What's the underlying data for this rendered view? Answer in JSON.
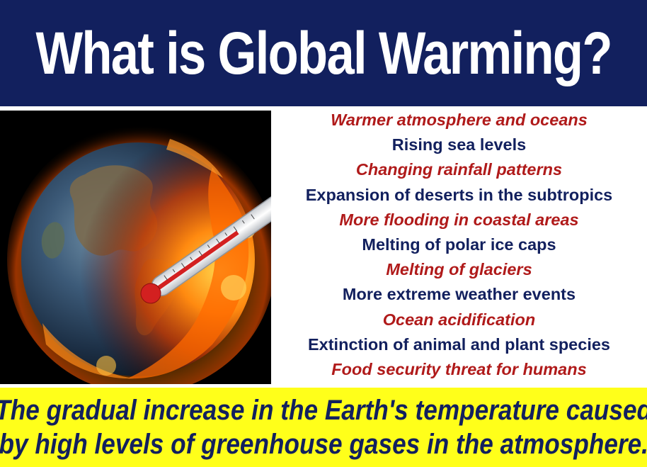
{
  "title": "What is Global Warming?",
  "illustration": {
    "description_icon": "burning-earth-thermometer-icon",
    "colors": {
      "fire": "#ff6a00",
      "ocean": "#1c3a5a",
      "thermometer_bulb": "#d32020"
    }
  },
  "effects": [
    {
      "text": "Warmer atmosphere and oceans",
      "color": "#b01a1a"
    },
    {
      "text": "Rising sea levels",
      "color": "#12205e"
    },
    {
      "text": "Changing rainfall patterns",
      "color": "#b01a1a"
    },
    {
      "text": "Expansion of deserts in the subtropics",
      "color": "#12205e"
    },
    {
      "text": "More flooding in coastal areas",
      "color": "#b01a1a"
    },
    {
      "text": "Melting of polar ice caps",
      "color": "#12205e"
    },
    {
      "text": "Melting of glaciers",
      "color": "#b01a1a"
    },
    {
      "text": "More extreme weather events",
      "color": "#12205e"
    },
    {
      "text": "Ocean acidification",
      "color": "#b01a1a"
    },
    {
      "text": "Extinction of animal and plant species",
      "color": "#12205e"
    },
    {
      "text": "Food security threat for humans",
      "color": "#b01a1a"
    }
  ],
  "definition": {
    "line1": "The gradual increase in the Earth's temperature caused",
    "line2": "by high levels of greenhouse gases in the atmosphere."
  },
  "colors": {
    "title_bg": "#12205e",
    "title_text": "#ffffff",
    "definition_bg": "#ffff1a",
    "definition_text": "#12205e"
  }
}
